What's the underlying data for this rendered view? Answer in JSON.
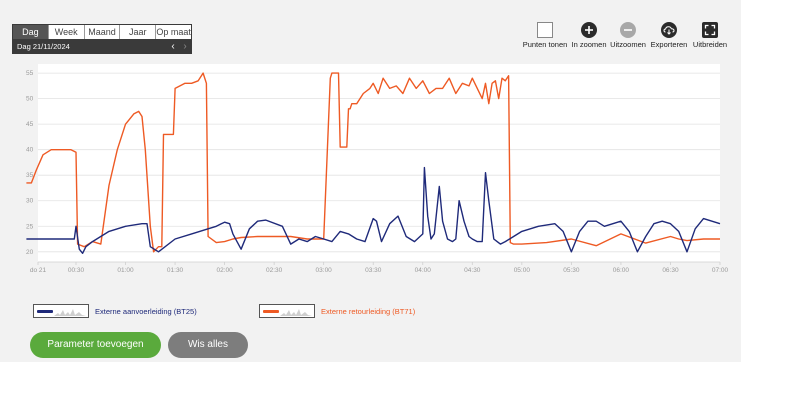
{
  "period": {
    "tabs": [
      "Dag",
      "Week",
      "Maand",
      "Jaar",
      "Op maat"
    ],
    "active_tab": "Dag",
    "date_label": "Dag  21/11/2024",
    "prev_icon": "chevron-left-icon",
    "next_icon": "chevron-right-icon"
  },
  "toolbar": {
    "points_label": "Punten tonen",
    "zoom_in_label": "In zoomen",
    "zoom_out_label": "Uitzoomen",
    "export_label": "Exporteren",
    "expand_label": "Uitbreiden"
  },
  "legend": {
    "series1_label": "Externe aanvoerleiding (BT25)",
    "series2_label": "Externe retourleiding (BT71)"
  },
  "buttons": {
    "add_param": "Parameter toevoegen",
    "clear_all": "Wis alles"
  },
  "colors": {
    "series1": "#1f2a7a",
    "series2": "#ee5a24",
    "add_button": "#5aaa3c",
    "clear_button": "#7d7d7d",
    "grid": "#e2e2e2"
  },
  "chart_data": {
    "type": "line",
    "ylim": [
      18,
      56
    ],
    "xlim": [
      "00:07",
      "07:00"
    ],
    "yticks": [
      20,
      25,
      30,
      35,
      40,
      45,
      50,
      55
    ],
    "xticks": [
      "do 21",
      "00:30",
      "01:00",
      "01:30",
      "02:00",
      "02:30",
      "03:00",
      "03:30",
      "04:00",
      "04:30",
      "05:00",
      "05:30",
      "06:00",
      "06:30",
      "07:00"
    ],
    "grid": true,
    "series": [
      {
        "name": "Externe aanvoerleiding (BT25)",
        "color": "#1f2a7a",
        "x": [
          "00:00",
          "00:29",
          "00:30",
          "00:32",
          "00:34",
          "00:36",
          "00:40",
          "00:50",
          "01:00",
          "01:10",
          "01:13",
          "01:15",
          "01:20",
          "01:30",
          "01:40",
          "01:50",
          "01:55",
          "01:58",
          "02:00",
          "02:03",
          "02:05",
          "02:10",
          "02:15",
          "02:20",
          "02:25",
          "02:35",
          "02:40",
          "02:45",
          "02:50",
          "02:55",
          "03:00",
          "03:05",
          "03:10",
          "03:15",
          "03:20",
          "03:25",
          "03:30",
          "03:32",
          "03:35",
          "03:40",
          "03:45",
          "03:50",
          "03:55",
          "04:00",
          "04:01",
          "04:03",
          "04:05",
          "04:07",
          "04:10",
          "04:12",
          "04:15",
          "04:18",
          "04:20",
          "04:22",
          "04:25",
          "04:28",
          "04:30",
          "04:33",
          "04:36",
          "04:38",
          "04:40",
          "04:43",
          "04:45",
          "04:47",
          "04:50",
          "04:55",
          "05:00",
          "05:10",
          "05:20",
          "05:25",
          "05:30",
          "05:35",
          "05:40",
          "05:45",
          "05:50",
          "06:00",
          "06:05",
          "06:10",
          "06:15",
          "06:20",
          "06:25",
          "06:30",
          "06:35",
          "06:40",
          "06:45",
          "06:50",
          "07:00"
        ],
        "values": [
          22.5,
          22.5,
          25,
          20.5,
          19.7,
          21,
          22,
          24,
          25,
          25.5,
          25.5,
          21,
          20,
          22.5,
          23.5,
          24.5,
          25,
          25.5,
          25.8,
          25.5,
          23.5,
          20.5,
          24.5,
          26,
          26.2,
          25,
          21.5,
          22.5,
          22,
          23,
          22.5,
          22,
          24,
          23.5,
          22.5,
          22,
          26.5,
          26,
          22,
          25.5,
          27,
          23,
          22,
          23.5,
          36.5,
          27,
          22.5,
          23.5,
          32.8,
          26,
          22.5,
          22,
          22.5,
          30,
          26,
          23,
          22.5,
          22,
          22,
          35.5,
          30,
          22.5,
          22,
          21.5,
          22,
          23,
          24,
          25,
          25.5,
          24,
          20,
          24,
          26,
          26,
          25,
          26,
          24,
          20,
          23,
          25.5,
          26,
          25.5,
          24,
          20,
          24.5,
          26.5,
          25.5
        ]
      },
      {
        "name": "Externe retourleiding (BT71)",
        "color": "#ee5a24",
        "x": [
          "00:00",
          "00:03",
          "00:06",
          "00:10",
          "00:15",
          "00:20",
          "00:27",
          "00:30",
          "00:31",
          "00:35",
          "00:40",
          "00:45",
          "00:50",
          "00:55",
          "01:00",
          "01:05",
          "01:08",
          "01:10",
          "01:12",
          "01:15",
          "01:17",
          "01:20",
          "01:22",
          "01:23",
          "01:24",
          "01:25",
          "01:29",
          "01:30",
          "01:36",
          "01:40",
          "01:44",
          "01:47",
          "01:49",
          "01:50",
          "01:55",
          "02:00",
          "02:05",
          "02:10",
          "02:20",
          "02:30",
          "02:40",
          "02:50",
          "03:00",
          "03:04",
          "03:05",
          "03:06",
          "03:09",
          "03:10",
          "03:12",
          "03:14",
          "03:15",
          "03:16",
          "03:17",
          "03:20",
          "03:24",
          "03:28",
          "03:30",
          "03:33",
          "03:36",
          "03:40",
          "03:44",
          "03:48",
          "03:52",
          "03:56",
          "04:00",
          "04:04",
          "04:08",
          "04:12",
          "04:16",
          "04:20",
          "04:24",
          "04:28",
          "04:30",
          "04:36",
          "04:38",
          "04:40",
          "04:42",
          "04:44",
          "04:46",
          "04:48",
          "04:50",
          "04:52",
          "04:53",
          "04:55",
          "05:00",
          "05:15",
          "05:30",
          "05:45",
          "06:00",
          "06:15",
          "06:30",
          "06:35",
          "06:40",
          "06:50",
          "07:00"
        ],
        "values": [
          33.5,
          33.5,
          36,
          39,
          40,
          40,
          40,
          39.5,
          21.5,
          21,
          22,
          21.5,
          33,
          40,
          45,
          47,
          47.5,
          46.5,
          40,
          25,
          20,
          21,
          21,
          43,
          43,
          43,
          43,
          52,
          53,
          53,
          53.5,
          55,
          53,
          23,
          21.8,
          22,
          22.5,
          22.8,
          23,
          23,
          23,
          22.5,
          22.5,
          54,
          55,
          55,
          55,
          40.5,
          40.5,
          40.5,
          48,
          48,
          49,
          49,
          51,
          52,
          53,
          51,
          54,
          52,
          52.5,
          51,
          54,
          52,
          53.5,
          51,
          52,
          52,
          54,
          51,
          53,
          52.5,
          54,
          50,
          53,
          49,
          53,
          53.5,
          50,
          54,
          53.5,
          54.5,
          21.8,
          21.5,
          21.5,
          21.8,
          22.5,
          21.2,
          23.5,
          21.7,
          23,
          22.5,
          22.2,
          22.5,
          22.5
        ]
      }
    ]
  }
}
